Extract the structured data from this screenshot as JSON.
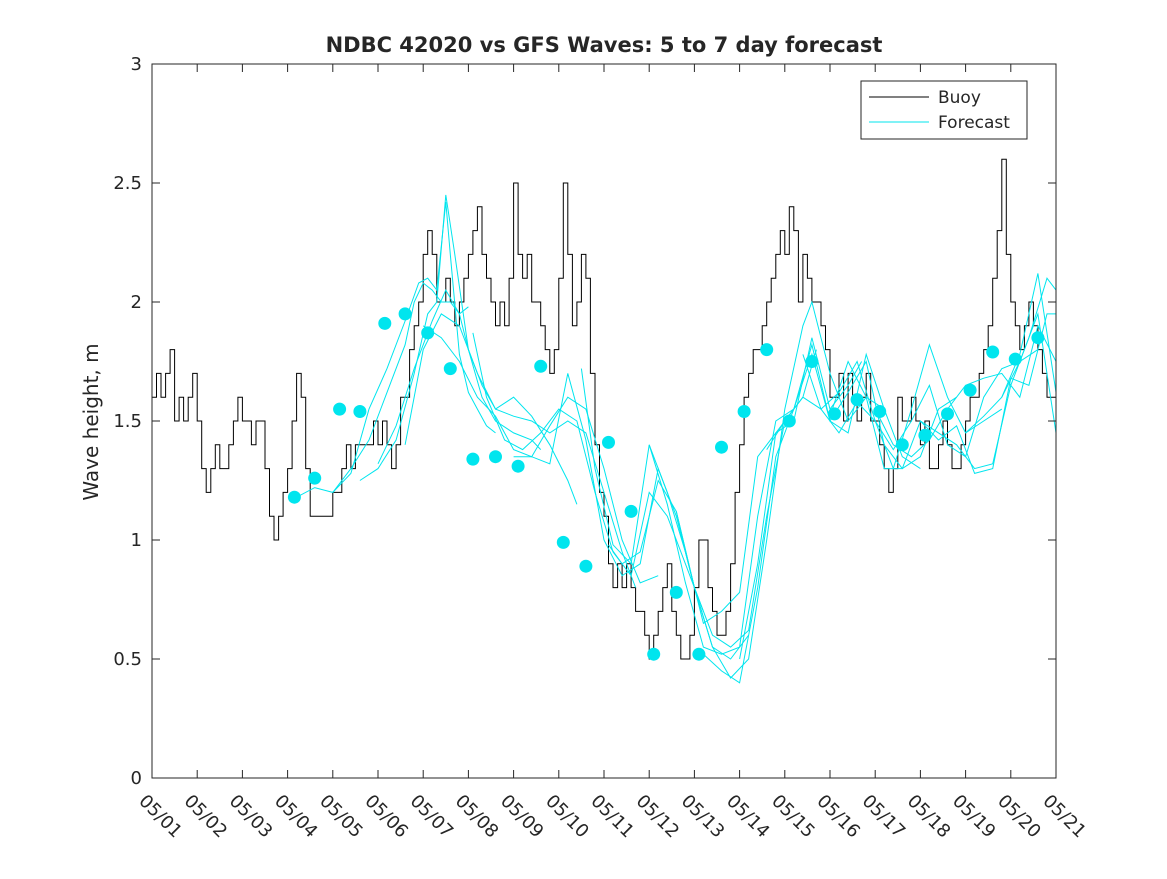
{
  "chart_data": {
    "type": "line",
    "title": "NDBC 42020 vs GFS Waves: 5 to 7 day forecast",
    "xlabel": "",
    "ylabel": "Wave height, m",
    "xlim": [
      "05/01",
      "05/21"
    ],
    "ylim": [
      0,
      3
    ],
    "x_ticks": [
      "05/01",
      "05/02",
      "05/03",
      "05/04",
      "05/05",
      "05/06",
      "05/07",
      "05/08",
      "05/09",
      "05/10",
      "05/11",
      "05/12",
      "05/13",
      "05/14",
      "05/15",
      "05/16",
      "05/17",
      "05/18",
      "05/19",
      "05/20",
      "05/21"
    ],
    "y_ticks": [
      0,
      0.5,
      1,
      1.5,
      2,
      2.5,
      3
    ],
    "y_tick_labels": [
      "0",
      "0.5",
      "1",
      "1.5",
      "2",
      "2.5",
      "3"
    ],
    "legend": {
      "position": "top-right",
      "entries": [
        "Buoy",
        "Forecast"
      ]
    },
    "colors": {
      "buoy": "#000000",
      "forecast": "#00e5ee",
      "axis": "#262626",
      "background": "#ffffff"
    },
    "buoy": {
      "name": "Buoy",
      "x_day": [
        0.0,
        0.1,
        0.2,
        0.3,
        0.4,
        0.5,
        0.6,
        0.7,
        0.8,
        0.9,
        1.0,
        1.1,
        1.2,
        1.3,
        1.4,
        1.5,
        1.6,
        1.7,
        1.8,
        1.9,
        2.0,
        2.1,
        2.2,
        2.3,
        2.4,
        2.5,
        2.6,
        2.7,
        2.8,
        2.9,
        3.0,
        3.1,
        3.2,
        3.3,
        3.4,
        3.5,
        3.6,
        3.7,
        3.8,
        3.9,
        4.0,
        4.1,
        4.2,
        4.3,
        4.4,
        4.5,
        4.6,
        4.7,
        4.8,
        4.9,
        5.0,
        5.1,
        5.2,
        5.3,
        5.4,
        5.5,
        5.6,
        5.7,
        5.8,
        5.9,
        6.0,
        6.1,
        6.2,
        6.3,
        6.4,
        6.5,
        6.6,
        6.7,
        6.8,
        6.9,
        7.0,
        7.1,
        7.2,
        7.3,
        7.4,
        7.5,
        7.6,
        7.7,
        7.8,
        7.9,
        8.0,
        8.1,
        8.2,
        8.3,
        8.4,
        8.5,
        8.6,
        8.7,
        8.8,
        8.9,
        9.0,
        9.1,
        9.2,
        9.3,
        9.4,
        9.5,
        9.6,
        9.7,
        9.8,
        9.9,
        10.0,
        10.1,
        10.2,
        10.3,
        10.4,
        10.5,
        10.6,
        10.7,
        10.8,
        10.9,
        11.0,
        11.1,
        11.2,
        11.3,
        11.4,
        11.5,
        11.6,
        11.7,
        11.8,
        11.9,
        12.0,
        12.1,
        12.2,
        12.3,
        12.4,
        12.5,
        12.6,
        12.7,
        12.8,
        12.9,
        13.0,
        13.1,
        13.2,
        13.3,
        13.4,
        13.5,
        13.6,
        13.7,
        13.8,
        13.9,
        14.0,
        14.1,
        14.2,
        14.3,
        14.4,
        14.5,
        14.6,
        14.7,
        14.8,
        14.9,
        15.0,
        15.1,
        15.2,
        15.3,
        15.4,
        15.5,
        15.6,
        15.7,
        15.8,
        15.9,
        16.0,
        16.1,
        16.2,
        16.3,
        16.4,
        16.5,
        16.6,
        16.7,
        16.8,
        16.9,
        17.0,
        17.1,
        17.2,
        17.3,
        17.4,
        17.5,
        17.6,
        17.7,
        17.8,
        17.9,
        18.0,
        18.1,
        18.2,
        18.3,
        18.4,
        18.5,
        18.6,
        18.7,
        18.8,
        18.9,
        19.0,
        19.1,
        19.2,
        19.3,
        19.4,
        19.5,
        19.6,
        19.7,
        19.8,
        19.9,
        20.0
      ],
      "values": [
        1.6,
        1.7,
        1.6,
        1.7,
        1.8,
        1.5,
        1.6,
        1.5,
        1.6,
        1.7,
        1.5,
        1.3,
        1.2,
        1.3,
        1.4,
        1.3,
        1.3,
        1.4,
        1.5,
        1.6,
        1.5,
        1.5,
        1.4,
        1.5,
        1.5,
        1.3,
        1.1,
        1.0,
        1.1,
        1.2,
        1.3,
        1.5,
        1.7,
        1.6,
        1.3,
        1.1,
        1.1,
        1.1,
        1.1,
        1.1,
        1.2,
        1.2,
        1.3,
        1.4,
        1.3,
        1.4,
        1.4,
        1.4,
        1.4,
        1.5,
        1.4,
        1.5,
        1.4,
        1.3,
        1.4,
        1.6,
        1.6,
        1.8,
        1.9,
        2.0,
        2.2,
        2.3,
        2.2,
        2.0,
        2.0,
        2.1,
        2.0,
        1.9,
        2.0,
        2.1,
        2.2,
        2.3,
        2.4,
        2.2,
        2.1,
        2.0,
        1.9,
        2.0,
        1.9,
        2.1,
        2.5,
        2.2,
        2.1,
        2.2,
        2.0,
        2.0,
        1.9,
        1.8,
        1.7,
        1.8,
        2.1,
        2.5,
        2.2,
        1.9,
        2.0,
        2.2,
        2.1,
        1.7,
        1.4,
        1.2,
        1.1,
        0.9,
        0.8,
        0.9,
        0.8,
        0.9,
        0.8,
        0.7,
        0.7,
        0.6,
        0.5,
        0.6,
        0.7,
        0.8,
        0.9,
        0.7,
        0.6,
        0.5,
        0.5,
        0.6,
        0.8,
        1.0,
        1.0,
        0.8,
        0.7,
        0.6,
        0.6,
        0.7,
        0.9,
        1.2,
        1.4,
        1.6,
        1.7,
        1.8,
        1.8,
        1.9,
        2.0,
        2.1,
        2.2,
        2.3,
        2.2,
        2.4,
        2.3,
        2.0,
        2.2,
        2.1,
        2.0,
        2.0,
        1.9,
        1.8,
        1.6,
        1.6,
        1.7,
        1.5,
        1.7,
        1.6,
        1.5,
        1.6,
        1.7,
        1.5,
        1.5,
        1.4,
        1.3,
        1.2,
        1.3,
        1.6,
        1.5,
        1.5,
        1.6,
        1.5,
        1.4,
        1.5,
        1.3,
        1.3,
        1.4,
        1.5,
        1.4,
        1.3,
        1.3,
        1.4,
        1.5,
        1.6,
        1.6,
        1.7,
        1.8,
        1.9,
        2.1,
        2.3,
        2.6,
        2.2,
        2.0,
        1.9,
        1.8,
        1.9,
        2.0,
        1.9,
        1.8,
        1.7,
        1.6,
        1.6,
        1.5
      ]
    },
    "forecast_runs": [
      {
        "name": "Forecast",
        "x_day": [
          3.2,
          3.6,
          4.0,
          4.4,
          4.8,
          5.2,
          5.6,
          5.8,
          6.0,
          6.2,
          6.4,
          6.6,
          6.8,
          7.0
        ],
        "values": [
          1.18,
          1.22,
          1.2,
          1.3,
          1.42,
          1.62,
          1.82,
          2.0,
          2.08,
          2.05,
          2.0,
          2.0,
          1.95,
          1.98
        ]
      },
      {
        "name": "Forecast",
        "x_day": [
          4.0,
          4.4,
          4.8,
          5.2,
          5.6,
          5.9,
          6.1,
          6.3,
          6.5,
          6.6,
          6.8,
          7.0,
          7.2,
          7.4,
          7.6
        ],
        "values": [
          1.2,
          1.28,
          1.55,
          1.72,
          1.92,
          2.08,
          2.1,
          2.05,
          2.42,
          2.2,
          1.78,
          1.62,
          1.55,
          1.48,
          1.45
        ]
      },
      {
        "name": "Forecast",
        "x_day": [
          4.6,
          5.0,
          5.4,
          5.8,
          6.1,
          6.3,
          6.5,
          6.7,
          7.0,
          7.3,
          7.6,
          8.0,
          8.4,
          8.6
        ],
        "values": [
          1.25,
          1.3,
          1.42,
          1.7,
          1.95,
          2.0,
          2.45,
          2.2,
          1.8,
          1.6,
          1.5,
          1.45,
          1.42,
          1.38
        ]
      },
      {
        "name": "Forecast",
        "x_day": [
          5.0,
          5.4,
          5.8,
          6.2,
          6.5,
          6.8,
          7.0,
          7.3,
          7.6,
          8.0,
          8.4,
          8.8,
          9.2,
          9.4
        ],
        "values": [
          1.32,
          1.48,
          1.72,
          1.92,
          2.05,
          1.95,
          1.8,
          1.65,
          1.55,
          1.6,
          1.52,
          1.4,
          1.25,
          1.15
        ]
      },
      {
        "name": "Forecast",
        "x_day": [
          5.6,
          6.0,
          6.4,
          6.8,
          7.2,
          7.6,
          8.0,
          8.4,
          8.8,
          9.2,
          9.6,
          10.0,
          10.4,
          10.7
        ],
        "values": [
          1.4,
          1.8,
          1.95,
          1.9,
          1.7,
          1.55,
          1.52,
          1.5,
          1.45,
          1.5,
          1.45,
          1.2,
          0.95,
          0.8
        ]
      },
      {
        "name": "Forecast",
        "x_day": [
          6.0,
          6.4,
          6.8,
          7.2,
          7.6,
          8.0,
          8.4,
          8.8,
          9.2,
          9.6,
          10.0,
          10.4,
          10.8,
          11.2
        ],
        "values": [
          1.9,
          1.85,
          1.75,
          1.6,
          1.52,
          1.38,
          1.35,
          1.48,
          1.6,
          1.55,
          1.3,
          1.0,
          0.82,
          0.85
        ]
      },
      {
        "name": "Forecast",
        "x_day": [
          7.1,
          7.4,
          7.8,
          8.2,
          8.6,
          9.0,
          9.4,
          9.8,
          10.2,
          10.6,
          11.0,
          11.4,
          11.8,
          12.2
        ],
        "values": [
          1.87,
          1.6,
          1.42,
          1.38,
          1.45,
          1.55,
          1.5,
          1.2,
          0.95,
          0.85,
          1.2,
          1.1,
          0.9,
          0.7
        ]
      },
      {
        "name": "Forecast",
        "x_day": [
          8.0,
          8.4,
          8.8,
          9.2,
          9.6,
          10.0,
          10.4,
          10.8,
          11.2,
          11.6,
          12.0,
          12.4,
          12.8,
          13.2
        ],
        "values": [
          1.35,
          1.35,
          1.32,
          1.7,
          1.42,
          1.0,
          0.85,
          0.9,
          1.3,
          1.1,
          0.8,
          0.55,
          0.5,
          0.6
        ]
      },
      {
        "name": "Forecast",
        "x_day": [
          9.5,
          9.8,
          10.2,
          10.6,
          11.0,
          11.4,
          11.8,
          12.2,
          12.6,
          13.0,
          13.4,
          13.8,
          14.2
        ],
        "values": [
          1.72,
          1.3,
          0.98,
          0.9,
          1.4,
          1.15,
          0.82,
          0.55,
          0.52,
          0.55,
          1.1,
          1.5,
          1.55
        ]
      },
      {
        "name": "Forecast",
        "x_day": [
          10.1,
          10.4,
          10.8,
          11.2,
          11.6,
          12.0,
          12.4,
          12.8,
          13.2,
          13.6,
          14.0,
          14.4,
          14.7
        ],
        "values": [
          0.98,
          0.9,
          0.95,
          1.25,
          1.12,
          0.8,
          0.6,
          0.55,
          0.62,
          1.1,
          1.5,
          1.6,
          1.8
        ]
      },
      {
        "name": "Forecast",
        "x_day": [
          11.0,
          11.4,
          11.8,
          12.2,
          12.6,
          13.0,
          13.4,
          13.8,
          14.2,
          14.6,
          15.0,
          15.4,
          15.7
        ],
        "values": [
          1.4,
          1.2,
          0.95,
          0.65,
          0.7,
          0.78,
          1.35,
          1.45,
          1.5,
          1.85,
          1.55,
          1.65,
          1.75
        ]
      },
      {
        "name": "Forecast",
        "x_day": [
          11.6,
          12.0,
          12.4,
          12.8,
          13.2,
          13.6,
          14.0,
          14.4,
          14.6,
          15.0,
          15.4,
          15.8,
          16.2
        ],
        "values": [
          1.12,
          0.8,
          0.55,
          0.42,
          0.5,
          1.0,
          1.55,
          1.9,
          2.0,
          1.7,
          1.5,
          1.6,
          1.55
        ]
      },
      {
        "name": "Forecast",
        "x_day": [
          12.2,
          12.6,
          13.0,
          13.4,
          13.8,
          14.2,
          14.6,
          15.0,
          15.4,
          15.8,
          16.2,
          16.6,
          17.0
        ],
        "values": [
          0.52,
          0.45,
          0.4,
          0.8,
          1.35,
          1.55,
          1.82,
          1.5,
          1.45,
          1.78,
          1.55,
          1.35,
          1.3
        ]
      },
      {
        "name": "Forecast",
        "x_day": [
          13.0,
          13.4,
          13.8,
          14.2,
          14.6,
          15.0,
          15.4,
          15.8,
          16.2,
          16.6,
          17.0,
          17.4,
          17.8
        ],
        "values": [
          0.5,
          0.9,
          1.45,
          1.55,
          1.78,
          1.5,
          1.62,
          1.75,
          1.4,
          1.3,
          1.35,
          1.55,
          1.6
        ]
      },
      {
        "name": "Forecast",
        "x_day": [
          13.6,
          14.0,
          14.4,
          14.8,
          15.2,
          15.6,
          16.0,
          16.4,
          16.8,
          17.2,
          17.6,
          18.0,
          18.4,
          18.8
        ],
        "values": [
          1.38,
          1.5,
          1.6,
          1.55,
          1.62,
          1.75,
          1.5,
          1.3,
          1.55,
          1.82,
          1.6,
          1.45,
          1.5,
          1.55
        ]
      },
      {
        "name": "Forecast",
        "x_day": [
          14.4,
          14.8,
          15.2,
          15.6,
          16.0,
          16.4,
          16.8,
          17.2,
          17.6,
          18.0,
          18.4,
          18.8,
          19.2,
          19.6
        ],
        "values": [
          1.78,
          1.55,
          1.45,
          1.58,
          1.5,
          1.38,
          1.5,
          1.65,
          1.4,
          1.35,
          1.6,
          1.72,
          1.75,
          1.8
        ]
      },
      {
        "name": "Forecast",
        "x_day": [
          15.0,
          15.4,
          15.8,
          16.2,
          16.6,
          17.0,
          17.4,
          17.8,
          18.2,
          18.6,
          19.0,
          19.4,
          19.8,
          20.0
        ],
        "values": [
          1.52,
          1.75,
          1.6,
          1.3,
          1.3,
          1.5,
          1.45,
          1.4,
          1.3,
          1.32,
          1.65,
          1.85,
          2.1,
          2.05
        ]
      },
      {
        "name": "Forecast",
        "x_day": [
          16.0,
          16.4,
          16.8,
          17.2,
          17.6,
          18.0,
          18.4,
          18.8,
          19.2,
          19.6,
          20.0
        ],
        "values": [
          1.55,
          1.4,
          1.35,
          1.42,
          1.55,
          1.65,
          1.68,
          1.7,
          1.6,
          1.9,
          1.75
        ]
      },
      {
        "name": "Forecast",
        "x_day": [
          17.0,
          17.4,
          17.8,
          18.2,
          18.6,
          19.0,
          19.4,
          19.8,
          20.0
        ],
        "values": [
          1.5,
          1.42,
          1.48,
          1.28,
          1.3,
          1.68,
          1.65,
          1.95,
          1.95
        ]
      },
      {
        "name": "Forecast",
        "x_day": [
          18.0,
          18.4,
          18.8,
          19.2,
          19.6,
          20.0
        ],
        "values": [
          1.45,
          1.52,
          1.6,
          1.78,
          2.12,
          1.62
        ]
      },
      {
        "name": "Forecast",
        "x_day": [
          18.8,
          19.2,
          19.6,
          20.0
        ],
        "values": [
          1.6,
          1.75,
          1.95,
          1.45
        ]
      }
    ],
    "forecast_markers": {
      "x_day": [
        3.15,
        3.6,
        4.15,
        4.6,
        5.15,
        5.6,
        6.1,
        6.6,
        7.1,
        7.6,
        8.1,
        8.6,
        9.1,
        9.6,
        10.1,
        10.6,
        11.1,
        11.6,
        12.1,
        12.6,
        13.1,
        13.6,
        14.1,
        14.6,
        15.1,
        15.6,
        16.1,
        16.6,
        17.1,
        17.6,
        18.1,
        18.6,
        19.1,
        19.6
      ],
      "values": [
        1.18,
        1.26,
        1.55,
        1.54,
        1.91,
        1.95,
        1.87,
        1.72,
        1.34,
        1.35,
        1.31,
        1.73,
        0.99,
        0.89,
        1.41,
        1.12,
        0.52,
        0.78,
        0.52,
        1.39,
        1.54,
        1.8,
        1.5,
        1.75,
        1.53,
        1.59,
        1.54,
        1.4,
        1.44,
        1.53,
        1.63,
        1.79,
        1.76,
        1.85
      ]
    }
  }
}
